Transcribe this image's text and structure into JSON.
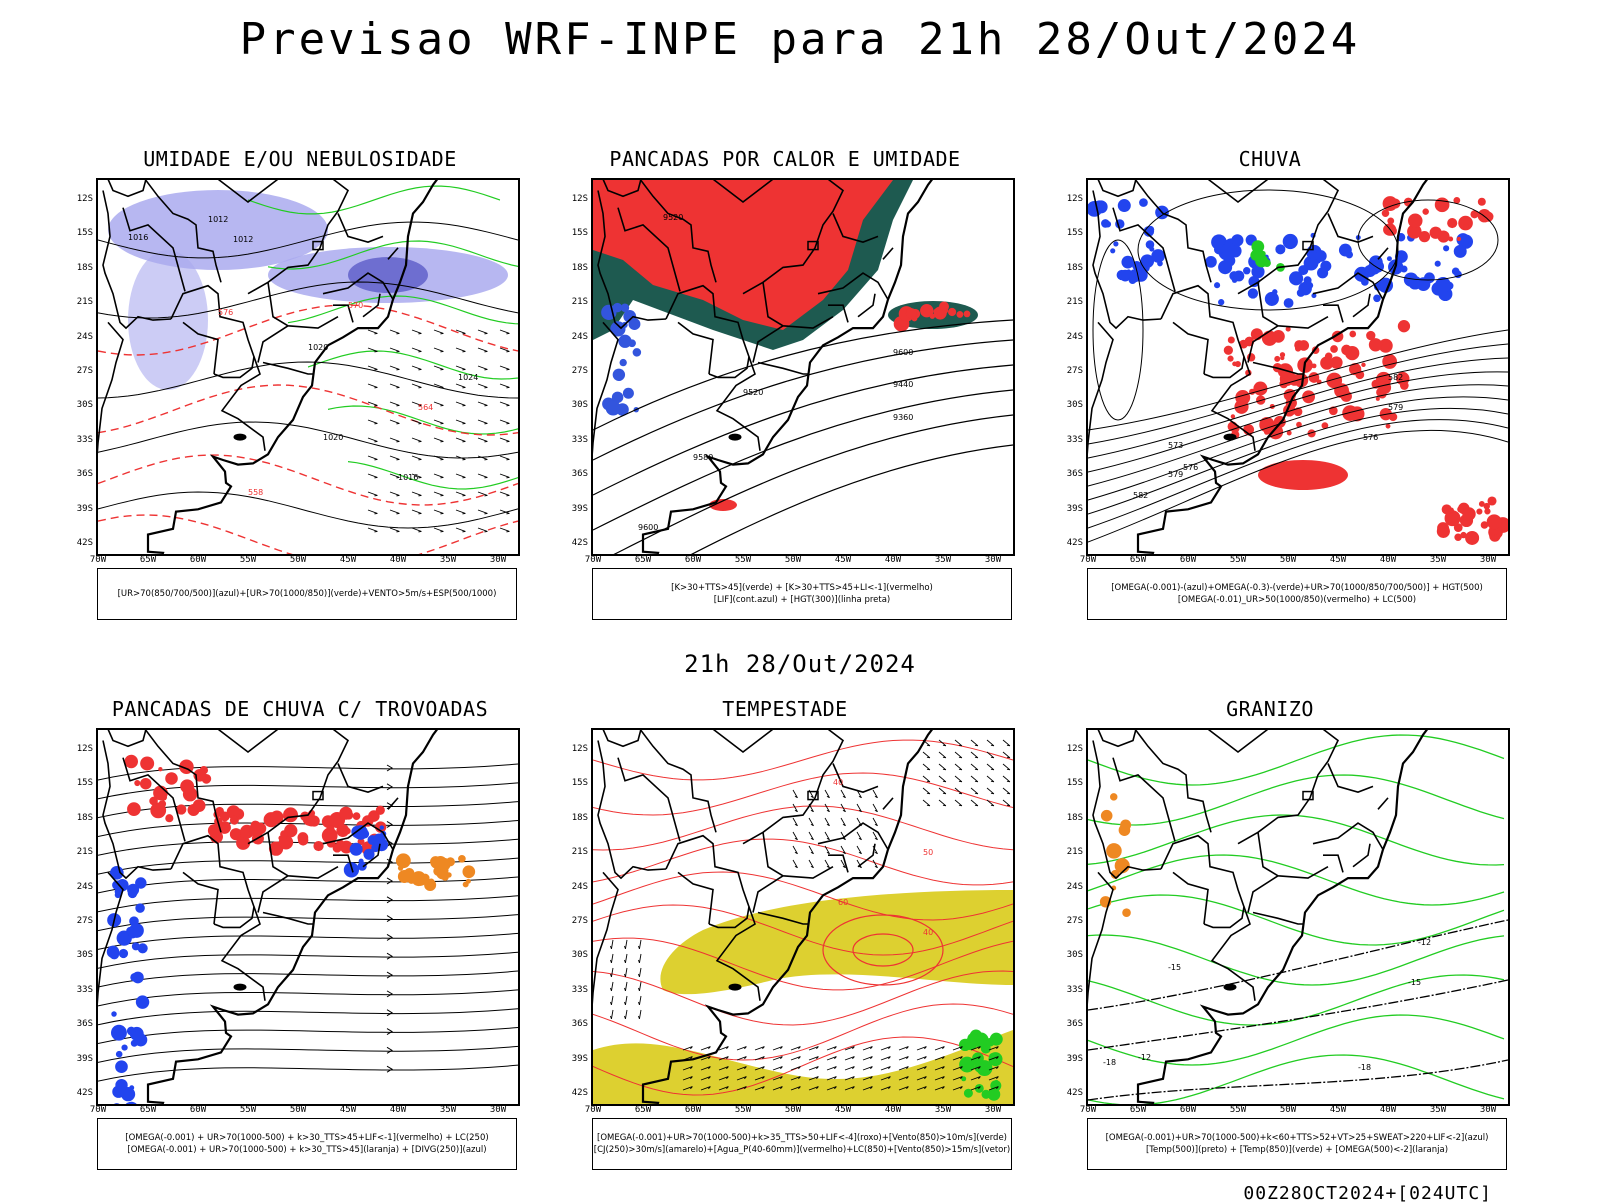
{
  "title": "Previsao WRF-INPE  para 21h 28/Out/2024",
  "middle_title": "21h 28/Out/2024",
  "footer": "00Z28OCT2024+[024UTC]",
  "axis": {
    "lat_labels": [
      "12S",
      "15S",
      "18S",
      "21S",
      "24S",
      "27S",
      "30S",
      "33S",
      "36S",
      "39S",
      "42S"
    ],
    "lon_labels": [
      "70W",
      "65W",
      "60W",
      "55W",
      "50W",
      "45W",
      "40W",
      "35W",
      "30W"
    ]
  },
  "panels": [
    {
      "id": "umidade",
      "title": "UMIDADE E/OU NEBULOSIDADE",
      "legend": [
        "[UR>70(850/700/500)](azul)+[UR>70(1000/850)](verde)+VENTO>5m/s+ESP(500/1000)"
      ],
      "contour_labels": [
        "1012",
        "1012",
        "1016",
        "1020",
        "1024",
        "1020",
        "1016",
        "576",
        "570",
        "564",
        "558"
      ]
    },
    {
      "id": "pancadas_calor",
      "title": "PANCADAS POR CALOR E UMIDADE",
      "legend": [
        "[K>30+TTS>45](verde) + [K>30+TTS>45+LI<-1](vermelho)",
        "[LIF](cont.azul) + [HGT(300)](linha preta)"
      ],
      "contour_labels": [
        "9600",
        "9520",
        "9440",
        "9360",
        "9580"
      ]
    },
    {
      "id": "chuva",
      "title": "CHUVA",
      "legend": [
        "[OMEGA(-0.001)-(azul)+OMEGA(-0.3)-(verde)+UR>70(1000/850/700/500)] + HGT(500)",
        "[OMEGA(-0.01)_UR>50(1000/850)(vermelho) + LC(500)"
      ],
      "contour_labels": [
        "582",
        "579",
        "576",
        "573"
      ]
    },
    {
      "id": "trovoadas",
      "title": "PANCADAS DE CHUVA C/ TROVOADAS",
      "legend": [
        "[OMEGA(-0.001) + UR>70(1000-500) + k>30_TTS>45+LIF<-1](vermelho) + LC(250)",
        "[OMEGA(-0.001) + UR>70(1000-500) + k>30_TTS>45](laranja) + [DIVG(250)](azul)"
      ],
      "contour_labels": []
    },
    {
      "id": "tempestade",
      "title": "TEMPESTADE",
      "legend": [
        "[OMEGA(-0.001)+UR>70(1000-500)+k>35_TTS>50+LIF<-4](roxo)+[Vento(850)>10m/s](verde)",
        "[CJ(250)>30m/s](amarelo)+[Agua_P(40-60mm)](vermelho)+LC(850)+[Vento(850)>15m/s](vetor)"
      ],
      "contour_labels": [
        "40",
        "50",
        "60"
      ]
    },
    {
      "id": "granizo",
      "title": "GRANIZO",
      "legend": [
        "[OMEGA(-0.001)+UR>70(1000-500)+k<60+TTS>52+VT>25+SWEAT>220+LIF<-2](azul)",
        "[Temp(500)](preto) + [Temp(850)](verde) + [OMEGA(500)<-2](laranja)"
      ],
      "contour_labels": [
        "-12",
        "-15",
        "-18"
      ]
    }
  ],
  "colors": {
    "blue_shade": "#aaaaee",
    "blue": "#2244ee",
    "green": "#22cc22",
    "red": "#ee3333",
    "dark_teal": "#1e5a50",
    "yellow": "#ddd030",
    "orange": "#ee8822"
  }
}
